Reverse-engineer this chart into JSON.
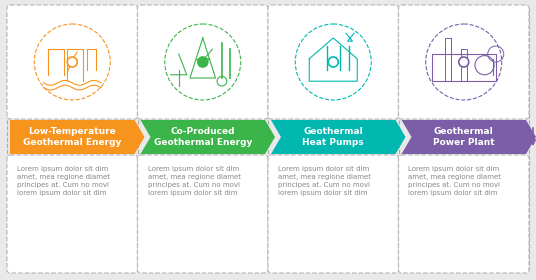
{
  "bg_color": "#e9e9e9",
  "card_bg": "#ffffff",
  "card_border_color": "#bbbbbb",
  "steps": [
    {
      "title": "Low-Temperature\nGeothermal Energy",
      "arrow_color": "#f7941d",
      "icon_color": "#f7941d",
      "dot_filled": false
    },
    {
      "title": "Co-Produced\nGeothermal Energy",
      "arrow_color": "#3bb54a",
      "icon_color": "#3bb54a",
      "dot_filled": true
    },
    {
      "title": "Geothermal\nHeat Pumps",
      "arrow_color": "#00b8b0",
      "icon_color": "#00b8b0",
      "dot_filled": false
    },
    {
      "title": "Geothermal\nPower Plant",
      "arrow_color": "#7b5ea7",
      "icon_color": "#7b5ea7",
      "dot_filled": false
    }
  ],
  "lorem_text": "Lorem ipsum dolor sit dim\namet, mea regione diamet\nprincipes at. Cum no movi\nlorem ipsum dolor sit dim",
  "dashed_line_color": "#aaaaaa",
  "text_color": "#888888",
  "title_text_color": "#ffffff",
  "arrow_font_size": 6.5,
  "body_font_size": 5.0
}
